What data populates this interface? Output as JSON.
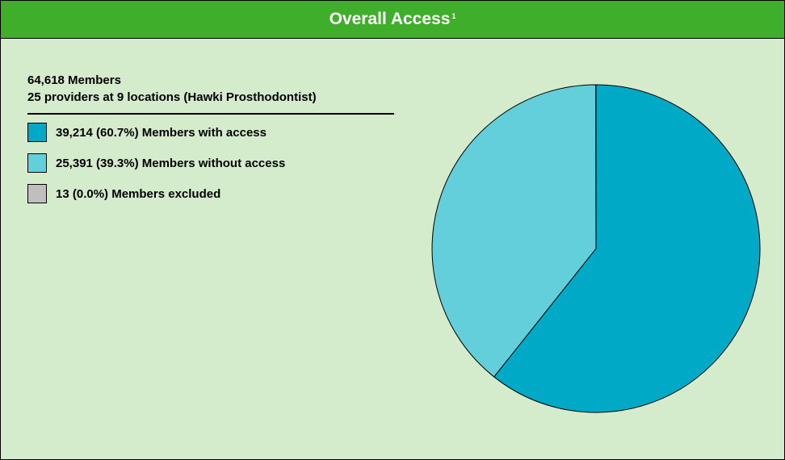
{
  "header": {
    "title": "Overall Access",
    "footnote": "1"
  },
  "summary": {
    "members": "64,618 Members",
    "providers": "25 providers at 9 locations (Hawki Prosthodontist)"
  },
  "legend": [
    {
      "label": "39,214 (60.7%) Members with access",
      "color": "#00a9c5"
    },
    {
      "label": "25,391 (39.3%) Members without access",
      "color": "#63cfdb"
    },
    {
      "label": "13 (0.0%) Members excluded",
      "color": "#bfbfbf"
    }
  ],
  "chart_data": {
    "type": "pie",
    "categories": [
      "Members with access",
      "Members without access",
      "Members excluded"
    ],
    "values": [
      39214,
      25391,
      13
    ],
    "percentages": [
      60.7,
      39.3,
      0.0
    ],
    "colors": [
      "#00a9c5",
      "#63cfdb",
      "#bfbfbf"
    ],
    "start_angle": "12 o'clock",
    "direction": "clockwise",
    "legend_position": "left"
  }
}
